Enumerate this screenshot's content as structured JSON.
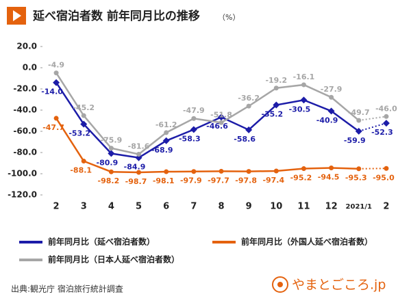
{
  "chart_data": {
    "type": "line",
    "title": "延べ宿泊者数 前年同月比の推移",
    "unit": "（%）",
    "categories": [
      "2",
      "3",
      "4",
      "5",
      "6",
      "7",
      "8",
      "9",
      "10",
      "11",
      "12",
      "2021/1",
      "2"
    ],
    "ylim": [
      -120,
      20
    ],
    "yticks": [
      {
        "value": 20,
        "label": "20.0"
      },
      {
        "value": 0,
        "label": "0.0"
      },
      {
        "value": -20,
        "label": "-20.0"
      },
      {
        "value": -40,
        "label": "-40.0"
      },
      {
        "value": -60,
        "label": "-60.0"
      },
      {
        "value": -80,
        "label": "-80.0"
      },
      {
        "value": -100,
        "label": "-100.0"
      },
      {
        "value": -120,
        "label": "-120.0"
      }
    ],
    "grid": false,
    "series": [
      {
        "name": "前年同月比（延べ宿泊者数）",
        "color": "#1c1ca8",
        "marker": "diamond",
        "values": [
          -14.0,
          -53.2,
          -80.9,
          -84.9,
          -68.9,
          -58.3,
          -46.6,
          -58.6,
          -35.2,
          -30.5,
          -40.9,
          -59.9,
          -52.3
        ],
        "value_labels": [
          "-14.0",
          "-53.2",
          "-80.9",
          "-84.9",
          "-68.9",
          "-58.3",
          "-46.6",
          "-58.6",
          "-35.2",
          "-30.5",
          "-40.9",
          "-59.9",
          "-52.3"
        ]
      },
      {
        "name": "前年同月比（外国人延べ宿泊者数）",
        "color": "#e4620e",
        "marker": "circle",
        "values": [
          -47.7,
          -88.1,
          -98.2,
          -98.7,
          -98.1,
          -97.9,
          -97.7,
          -97.8,
          -97.4,
          -95.2,
          -94.5,
          -95.3,
          -95.0
        ],
        "value_labels": [
          "-47.7",
          "-88.1",
          "-98.2",
          "-98.7",
          "-98.1",
          "-97.9",
          "-97.7",
          "-97.8",
          "-97.4",
          "-95.2",
          "-94.5",
          "-95.3",
          "-95.0"
        ]
      },
      {
        "name": "前年同月比（日本人延べ宿泊者数）",
        "color": "#a6a6a6",
        "marker": "circle",
        "values": [
          -4.9,
          -45.2,
          -75.9,
          -81.6,
          -61.2,
          -47.9,
          -51.8,
          -36.2,
          -19.2,
          -16.1,
          -27.9,
          -49.7,
          -46.0
        ],
        "value_labels": [
          "-4.9",
          "-45.2",
          "-75.9",
          "-81.6",
          "-61.2",
          "-47.9",
          "-51.8",
          "-36.2",
          "-19.2",
          "-16.1",
          "-27.9",
          "-49.7",
          "-46.0"
        ]
      }
    ],
    "source": "出典:観光庁 宿泊旅行統計調査",
    "logo": "やまとごころ.jp"
  }
}
